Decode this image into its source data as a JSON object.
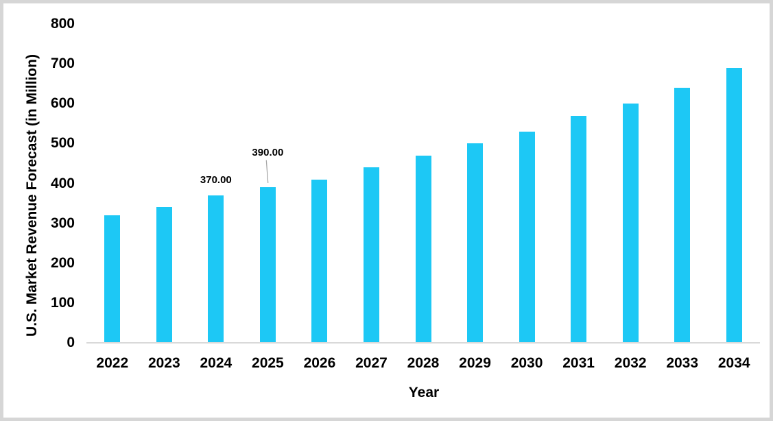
{
  "chart_data": {
    "type": "bar",
    "title": "",
    "xlabel": "Year",
    "ylabel": "U.S. Market Revenue Forecast (in Million)",
    "categories": [
      "2022",
      "2023",
      "2024",
      "2025",
      "2026",
      "2027",
      "2028",
      "2029",
      "2030",
      "2031",
      "2032",
      "2033",
      "2034"
    ],
    "values": [
      320,
      340,
      370,
      390,
      410,
      440,
      470,
      500,
      530,
      570,
      600,
      640,
      690
    ],
    "ylim": [
      0,
      800
    ],
    "ytick_labels": [
      "0",
      "100",
      "200",
      "300",
      "400",
      "500",
      "600",
      "700",
      "800"
    ],
    "grid": false,
    "legend": null,
    "bar_color": "#1DC8F5",
    "axis_line_color": "#D9D9D9",
    "leader_line_color": "#A6A6A6",
    "text_color": "#000000",
    "annotations": [
      {
        "index": 2,
        "text": "370.00",
        "leader": false
      },
      {
        "index": 3,
        "text": "390.00",
        "leader": true
      }
    ]
  }
}
